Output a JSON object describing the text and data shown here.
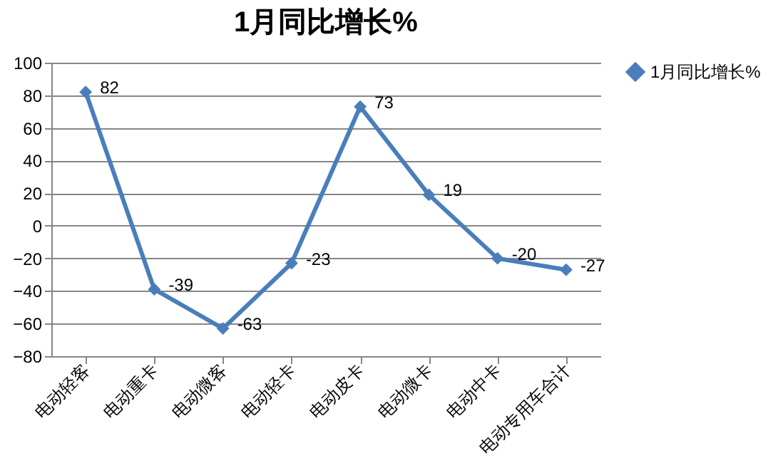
{
  "chart_data": {
    "type": "line",
    "title": "1月同比增长%",
    "categories": [
      "电动轻客",
      "电动重卡",
      "电动微客",
      "电动轻卡",
      "电动皮卡",
      "电动微卡",
      "电动中卡",
      "电动专用车合计"
    ],
    "series": [
      {
        "name": "1月同比增长%",
        "color": "#4a7ebb",
        "values": [
          82,
          -39,
          -63,
          -23,
          73,
          19,
          -20,
          -27
        ]
      }
    ],
    "ylim": [
      -80,
      100
    ],
    "yticks": [
      -80,
      -60,
      -40,
      -20,
      0,
      20,
      40,
      60,
      80,
      100
    ],
    "grid": "y",
    "legend": "right",
    "marker": "diamond",
    "data_labels": true
  }
}
